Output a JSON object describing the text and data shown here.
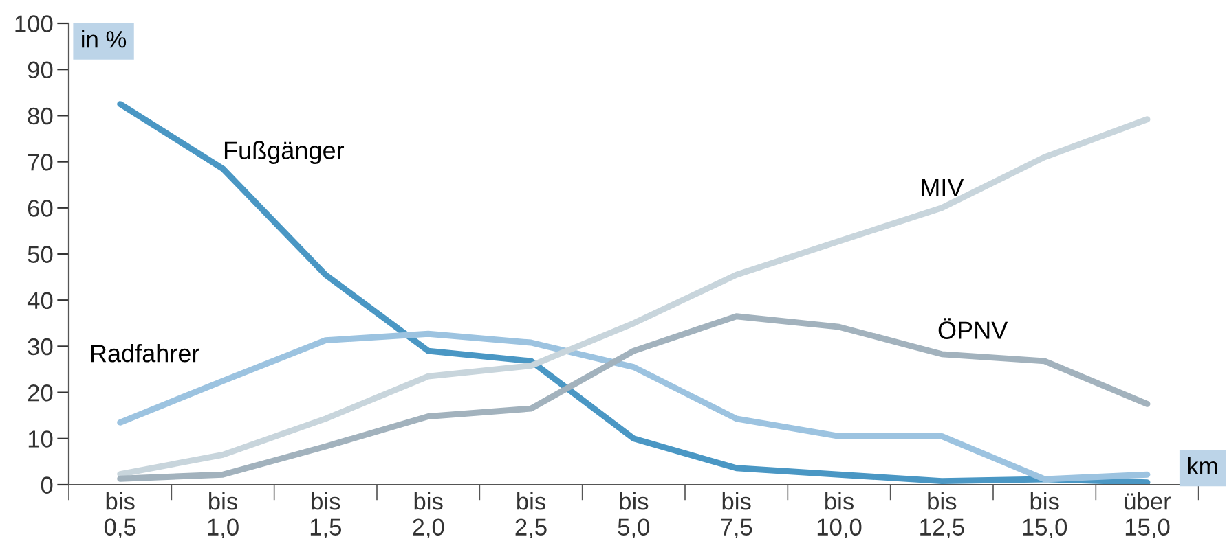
{
  "chart_data": {
    "type": "line",
    "ylabel": "in %",
    "xlabel": "km",
    "categories": [
      "bis\n0,5",
      "bis\n1,0",
      "bis\n1,5",
      "bis\n2,0",
      "bis\n2,5",
      "bis\n5,0",
      "bis\n7,5",
      "bis\n10,0",
      "bis\n12,5",
      "bis\n15,0",
      "über\n15,0"
    ],
    "series": [
      {
        "name": "Fußgänger",
        "color": "#4a97c4",
        "values": [
          82.5,
          68.5,
          45.5,
          29,
          26.8,
          10,
          3.6,
          2.2,
          0.8,
          1.2,
          0.5
        ]
      },
      {
        "name": "Radfahrer",
        "color": "#9cc3e0",
        "values": [
          13.5,
          22.5,
          31.3,
          32.7,
          30.8,
          25.5,
          14.3,
          10.5,
          10.5,
          1.2,
          2.2
        ]
      },
      {
        "name": "MIV",
        "color": "#c8d5dc",
        "values": [
          2.3,
          6.5,
          14.3,
          23.5,
          25.8,
          35,
          45.5,
          52.8,
          60,
          71,
          79.2
        ]
      },
      {
        "name": "ÖPNV",
        "color": "#a2b2bd",
        "values": [
          1.3,
          2.2,
          8.3,
          14.8,
          16.5,
          29,
          36.5,
          34.2,
          28.3,
          26.8,
          17.5
        ]
      }
    ],
    "ylim": [
      0,
      100
    ],
    "yticks": [
      0,
      10,
      20,
      30,
      40,
      50,
      60,
      70,
      80,
      90,
      100
    ],
    "grid": false,
    "legend": false,
    "marker": "none",
    "line_style": "solid"
  }
}
